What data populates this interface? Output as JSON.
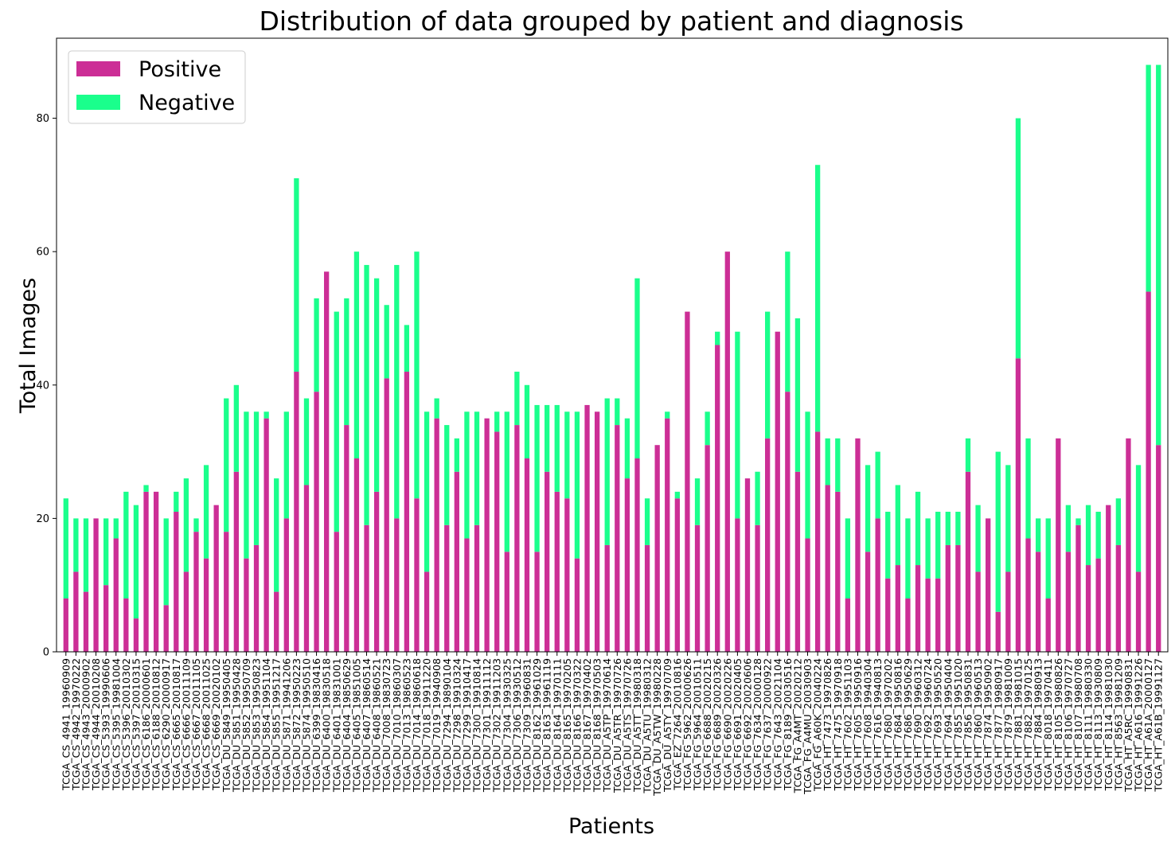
{
  "chart_data": {
    "type": "bar",
    "stacked": true,
    "title": "Distribution of data grouped by patient and diagnosis",
    "xlabel": "Patients",
    "ylabel": "Total Images",
    "ylim": [
      0,
      92
    ],
    "yticks": [
      0,
      20,
      40,
      60,
      80
    ],
    "grid": false,
    "legend_position": "upper-left",
    "categories": [
      "TCGA_CS_4941_19960909",
      "TCGA_CS_4942_19970222",
      "TCGA_CS_4943_20000902",
      "TCGA_CS_4944_20010208",
      "TCGA_CS_5393_19990606",
      "TCGA_CS_5395_19981004",
      "TCGA_CS_5396_20010302",
      "TCGA_CS_5397_20010315",
      "TCGA_CS_6186_20000601",
      "TCGA_CS_6188_20010812",
      "TCGA_CS_6290_20000917",
      "TCGA_CS_6665_20010817",
      "TCGA_CS_6666_20011109",
      "TCGA_CS_6667_20011105",
      "TCGA_CS_6668_20011025",
      "TCGA_CS_6669_20020102",
      "TCGA_DU_5849_19950405",
      "TCGA_DU_5851_19950428",
      "TCGA_DU_5852_19950709",
      "TCGA_DU_5853_19950823",
      "TCGA_DU_5854_19951104",
      "TCGA_DU_5855_19951217",
      "TCGA_DU_5871_19941206",
      "TCGA_DU_5872_19950223",
      "TCGA_DU_5874_19950510",
      "TCGA_DU_6399_19830416",
      "TCGA_DU_6400_19830518",
      "TCGA_DU_6401_19831001",
      "TCGA_DU_6404_19850629",
      "TCGA_DU_6405_19851005",
      "TCGA_DU_6407_19860514",
      "TCGA_DU_6408_19860521",
      "TCGA_DU_7008_19830723",
      "TCGA_DU_7010_19860307",
      "TCGA_DU_7013_19860523",
      "TCGA_DU_7014_19860618",
      "TCGA_DU_7018_19911220",
      "TCGA_DU_7019_19940908",
      "TCGA_DU_7294_19890104",
      "TCGA_DU_7298_19910324",
      "TCGA_DU_7299_19910417",
      "TCGA_DU_7300_19910814",
      "TCGA_DU_7301_19911112",
      "TCGA_DU_7302_19911203",
      "TCGA_DU_7304_19930325",
      "TCGA_DU_7306_19930512",
      "TCGA_DU_7309_19960831",
      "TCGA_DU_8162_19961029",
      "TCGA_DU_8163_19961119",
      "TCGA_DU_8164_19970111",
      "TCGA_DU_8165_19970205",
      "TCGA_DU_8166_19970322",
      "TCGA_DU_8167_19970402",
      "TCGA_DU_8168_19970503",
      "TCGA_DU_A5TP_19970614",
      "TCGA_DU_A5TR_19970726",
      "TCGA_DU_A5TS_19970726",
      "TCGA_DU_A5TT_19980318",
      "TCGA_DU_A5TU_19980312",
      "TCGA_DU_A5TW_19980228",
      "TCGA_DU_A5TY_19970709",
      "TCGA_EZ_7264_20010816",
      "TCGA_FG_5962_20000626",
      "TCGA_FG_5964_20010511",
      "TCGA_FG_6688_20020215",
      "TCGA_FG_6689_20020326",
      "TCGA_FG_6690_20020226",
      "TCGA_FG_6691_20020405",
      "TCGA_FG_6692_20020606",
      "TCGA_FG_7634_20000128",
      "TCGA_FG_7637_20000922",
      "TCGA_FG_7643_20021104",
      "TCGA_FG_8189_20030516",
      "TCGA_FG_A4MT_20020212",
      "TCGA_FG_A4MU_20030903",
      "TCGA_FG_A60K_20040224",
      "TCGA_HT_7473_19970826",
      "TCGA_HT_7475_19970918",
      "TCGA_HT_7602_19951103",
      "TCGA_HT_7605_19950916",
      "TCGA_HT_7608_19940304",
      "TCGA_HT_7616_19940813",
      "TCGA_HT_7680_19970202",
      "TCGA_HT_7684_19950816",
      "TCGA_HT_7686_19950629",
      "TCGA_HT_7690_19960312",
      "TCGA_HT_7692_19960724",
      "TCGA_HT_7693_19950520",
      "TCGA_HT_7694_19950404",
      "TCGA_HT_7855_19951020",
      "TCGA_HT_7856_19950831",
      "TCGA_HT_7860_19960513",
      "TCGA_HT_7874_19950902",
      "TCGA_HT_7877_19980917",
      "TCGA_HT_7879_19981009",
      "TCGA_HT_7881_19981015",
      "TCGA_HT_7882_19970125",
      "TCGA_HT_7884_19980913",
      "TCGA_HT_8018_19970411",
      "TCGA_HT_8105_19980826",
      "TCGA_HT_8106_19970727",
      "TCGA_HT_8107_19980708",
      "TCGA_HT_8111_19980330",
      "TCGA_HT_8113_19930809",
      "TCGA_HT_8114_19981030",
      "TCGA_HT_8563_19981209",
      "TCGA_HT_A5RC_19990831",
      "TCGA_HT_A616_19991226",
      "TCGA_HT_A61A_20000127",
      "TCGA_HT_A61B_19991127"
    ],
    "series": [
      {
        "name": "Positive",
        "color": "#cc2e96",
        "values": [
          8,
          12,
          9,
          20,
          10,
          17,
          8,
          5,
          24,
          24,
          7,
          21,
          12,
          18,
          14,
          22,
          18,
          27,
          14,
          16,
          35,
          9,
          20,
          42,
          25,
          39,
          57,
          18,
          34,
          29,
          19,
          24,
          41,
          20,
          42,
          23,
          12,
          35,
          19,
          27,
          17,
          19,
          35,
          33,
          15,
          34,
          29,
          15,
          27,
          24,
          23,
          14,
          37,
          36,
          16,
          34,
          26,
          29,
          16,
          31,
          35,
          23,
          51,
          19,
          31,
          46,
          60,
          20,
          26,
          19,
          32,
          48,
          39,
          27,
          17,
          33,
          25,
          24,
          8,
          32,
          15,
          20,
          11,
          13,
          8,
          13,
          11,
          11,
          16,
          16,
          27,
          12,
          20,
          6,
          12,
          44,
          17,
          15,
          8,
          32,
          15,
          19,
          13,
          14,
          22,
          16,
          32,
          12,
          54,
          31
        ]
      },
      {
        "name": "Negative",
        "color": "#1aff8c",
        "values": [
          15,
          8,
          11,
          0,
          10,
          3,
          16,
          17,
          1,
          0,
          13,
          3,
          14,
          2,
          14,
          0,
          20,
          13,
          22,
          20,
          1,
          17,
          16,
          29,
          13,
          14,
          0,
          33,
          19,
          31,
          39,
          32,
          11,
          38,
          7,
          37,
          24,
          3,
          15,
          5,
          19,
          17,
          0,
          3,
          21,
          8,
          11,
          22,
          10,
          13,
          13,
          22,
          0,
          0,
          22,
          4,
          9,
          27,
          7,
          0,
          1,
          1,
          0,
          7,
          5,
          2,
          0,
          28,
          0,
          8,
          19,
          0,
          21,
          23,
          19,
          40,
          7,
          8,
          12,
          0,
          13,
          10,
          10,
          12,
          12,
          11,
          9,
          10,
          5,
          5,
          5,
          10,
          0,
          24,
          16,
          36,
          15,
          5,
          12,
          0,
          7,
          1,
          9,
          7,
          0,
          7,
          0,
          16,
          34,
          57
        ]
      }
    ]
  }
}
